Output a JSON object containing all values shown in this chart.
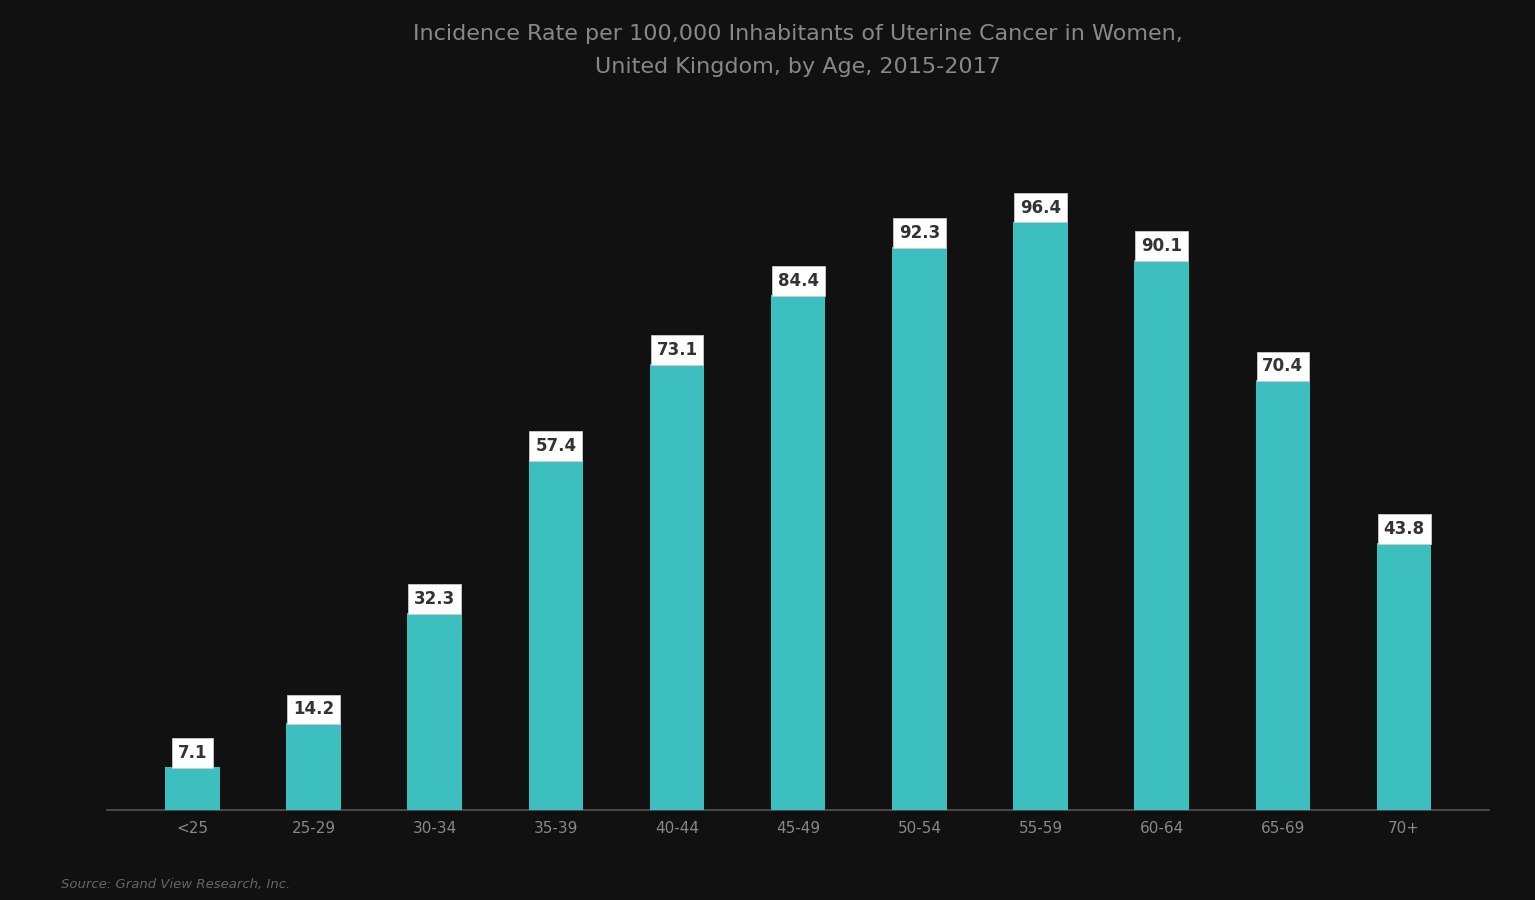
{
  "title_line1": "Incidence Rate per 100,000 Inhabitants of Uterine Cancer in Women,",
  "title_line2": "United Kingdom, by Age, 2015-2017",
  "categories": [
    "<25",
    "25-29",
    "30-34",
    "35-39",
    "40-44",
    "45-49",
    "50-54",
    "55-59",
    "60-64",
    "65-69",
    "70+"
  ],
  "values": [
    7.1,
    14.2,
    32.3,
    57.4,
    73.1,
    84.4,
    92.3,
    96.4,
    90.1,
    70.4,
    43.8
  ],
  "bar_color": "#3DBFBF",
  "background_color": "#111111",
  "text_color": "#888888",
  "title_color": "#888888",
  "label_bg_color": "#FFFFFF",
  "label_text_color": "#333333",
  "source_text": "Source: Grand View Research, Inc.",
  "ylim": [
    0,
    115
  ],
  "figsize": [
    15.35,
    9.0
  ],
  "dpi": 100
}
